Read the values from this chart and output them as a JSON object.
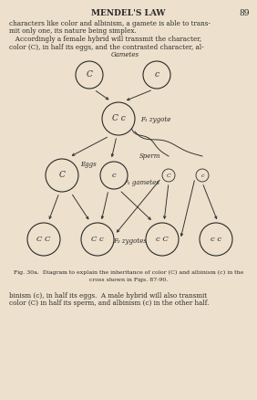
{
  "bg_color": "#ede0cc",
  "page_bg": "#ede0cc",
  "title": "MENDEL'S LAW",
  "page_num": "89",
  "top_text_lines": [
    "characters like color and albinism, a gamete is able to trans-",
    "mit only one, its nature being simplex.",
    "   Accordingly a female hybrid will transmit the character,",
    "color (C), in half its eggs, and the contrasted character, al-"
  ],
  "bottom_text_lines": [
    "binism (c), in half its eggs.  A male hybrid will also transmit",
    "color (C) in half its sperm, and albinism (c) in the other half."
  ],
  "caption": "Fig. 30a.  Diagram to explain the inheritance of color (C) and albinism (c) in the\ncross shown in Figs. 87-90.",
  "circle_edge": "#2a2a2a",
  "text_color": "#2a2a2a",
  "line_color": "#2a2a2a"
}
